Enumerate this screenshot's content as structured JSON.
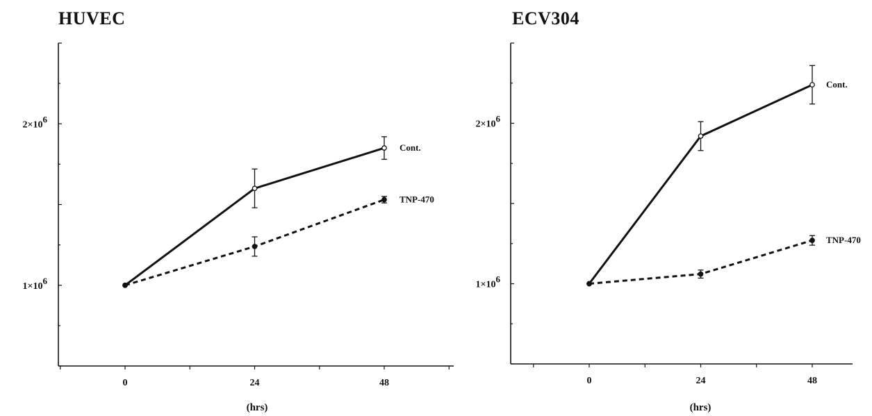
{
  "chart_data": [
    {
      "type": "line",
      "title": "HUVEC",
      "xlabel": "(hrs)",
      "ylabel": "",
      "x": [
        0,
        24,
        48
      ],
      "xlim": [
        -12,
        60
      ],
      "ylim": [
        500000,
        2500000
      ],
      "yticks_labeled": [
        {
          "value": 1000000,
          "base": "1×10",
          "exp": "6"
        },
        {
          "value": 2000000,
          "base": "2×10",
          "exp": "6"
        }
      ],
      "series": [
        {
          "name": "Cont.",
          "style": "solid",
          "marker": "open",
          "values": [
            1000000,
            1600000,
            1850000
          ],
          "errors": [
            0,
            120000,
            70000
          ]
        },
        {
          "name": "TNP-470",
          "style": "dashed",
          "marker": "filled",
          "values": [
            1000000,
            1240000,
            1530000
          ],
          "errors": [
            0,
            60000,
            20000
          ]
        }
      ],
      "grid": false
    },
    {
      "type": "line",
      "title": "ECV304",
      "xlabel": "(hrs)",
      "ylabel": "",
      "x": [
        0,
        24,
        48
      ],
      "xlim": [
        -12,
        60
      ],
      "ylim": [
        500000,
        2500000
      ],
      "yticks_labeled": [
        {
          "value": 1000000,
          "base": "1×10",
          "exp": "6"
        },
        {
          "value": 2000000,
          "base": "2×10",
          "exp": "6"
        }
      ],
      "series": [
        {
          "name": "Cont.",
          "style": "solid",
          "marker": "open",
          "values": [
            1000000,
            1920000,
            2240000
          ],
          "errors": [
            0,
            90000,
            120000
          ]
        },
        {
          "name": "TNP-470",
          "style": "dashed",
          "marker": "filled",
          "values": [
            1000000,
            1060000,
            1270000
          ],
          "errors": [
            0,
            25000,
            30000
          ]
        }
      ],
      "grid": false
    }
  ],
  "colors": {
    "ink": "#111111",
    "background": "#ffffff"
  }
}
